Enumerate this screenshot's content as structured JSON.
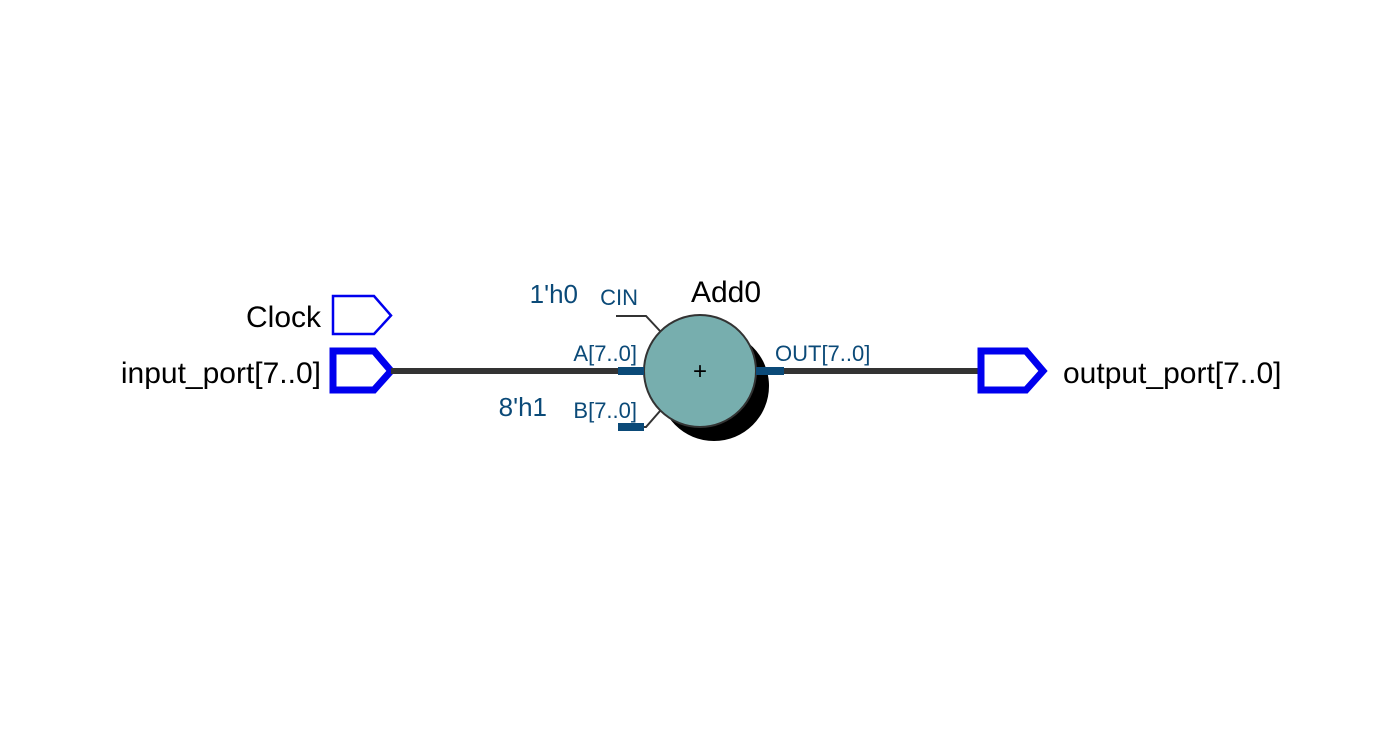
{
  "ports": {
    "clock": {
      "label": "Clock"
    },
    "input": {
      "label": "input_port[7..0]"
    },
    "output": {
      "label": "output_port[7..0]"
    }
  },
  "adder": {
    "name": "Add0",
    "operator": "+",
    "pins": {
      "cin": "CIN",
      "a": "A[7..0]",
      "b": "B[7..0]",
      "out": "OUT[7..0]"
    },
    "constants": {
      "cin": "1'h0",
      "b": "8'h1"
    }
  },
  "colors": {
    "port_outline": "#0000ee",
    "wire": "#333333",
    "adder_fill": "#77aeae",
    "adder_shadow": "#000000",
    "pin_stub": "#0b4a78",
    "pin_label": "#0b4a78",
    "port_label": "#000000"
  }
}
